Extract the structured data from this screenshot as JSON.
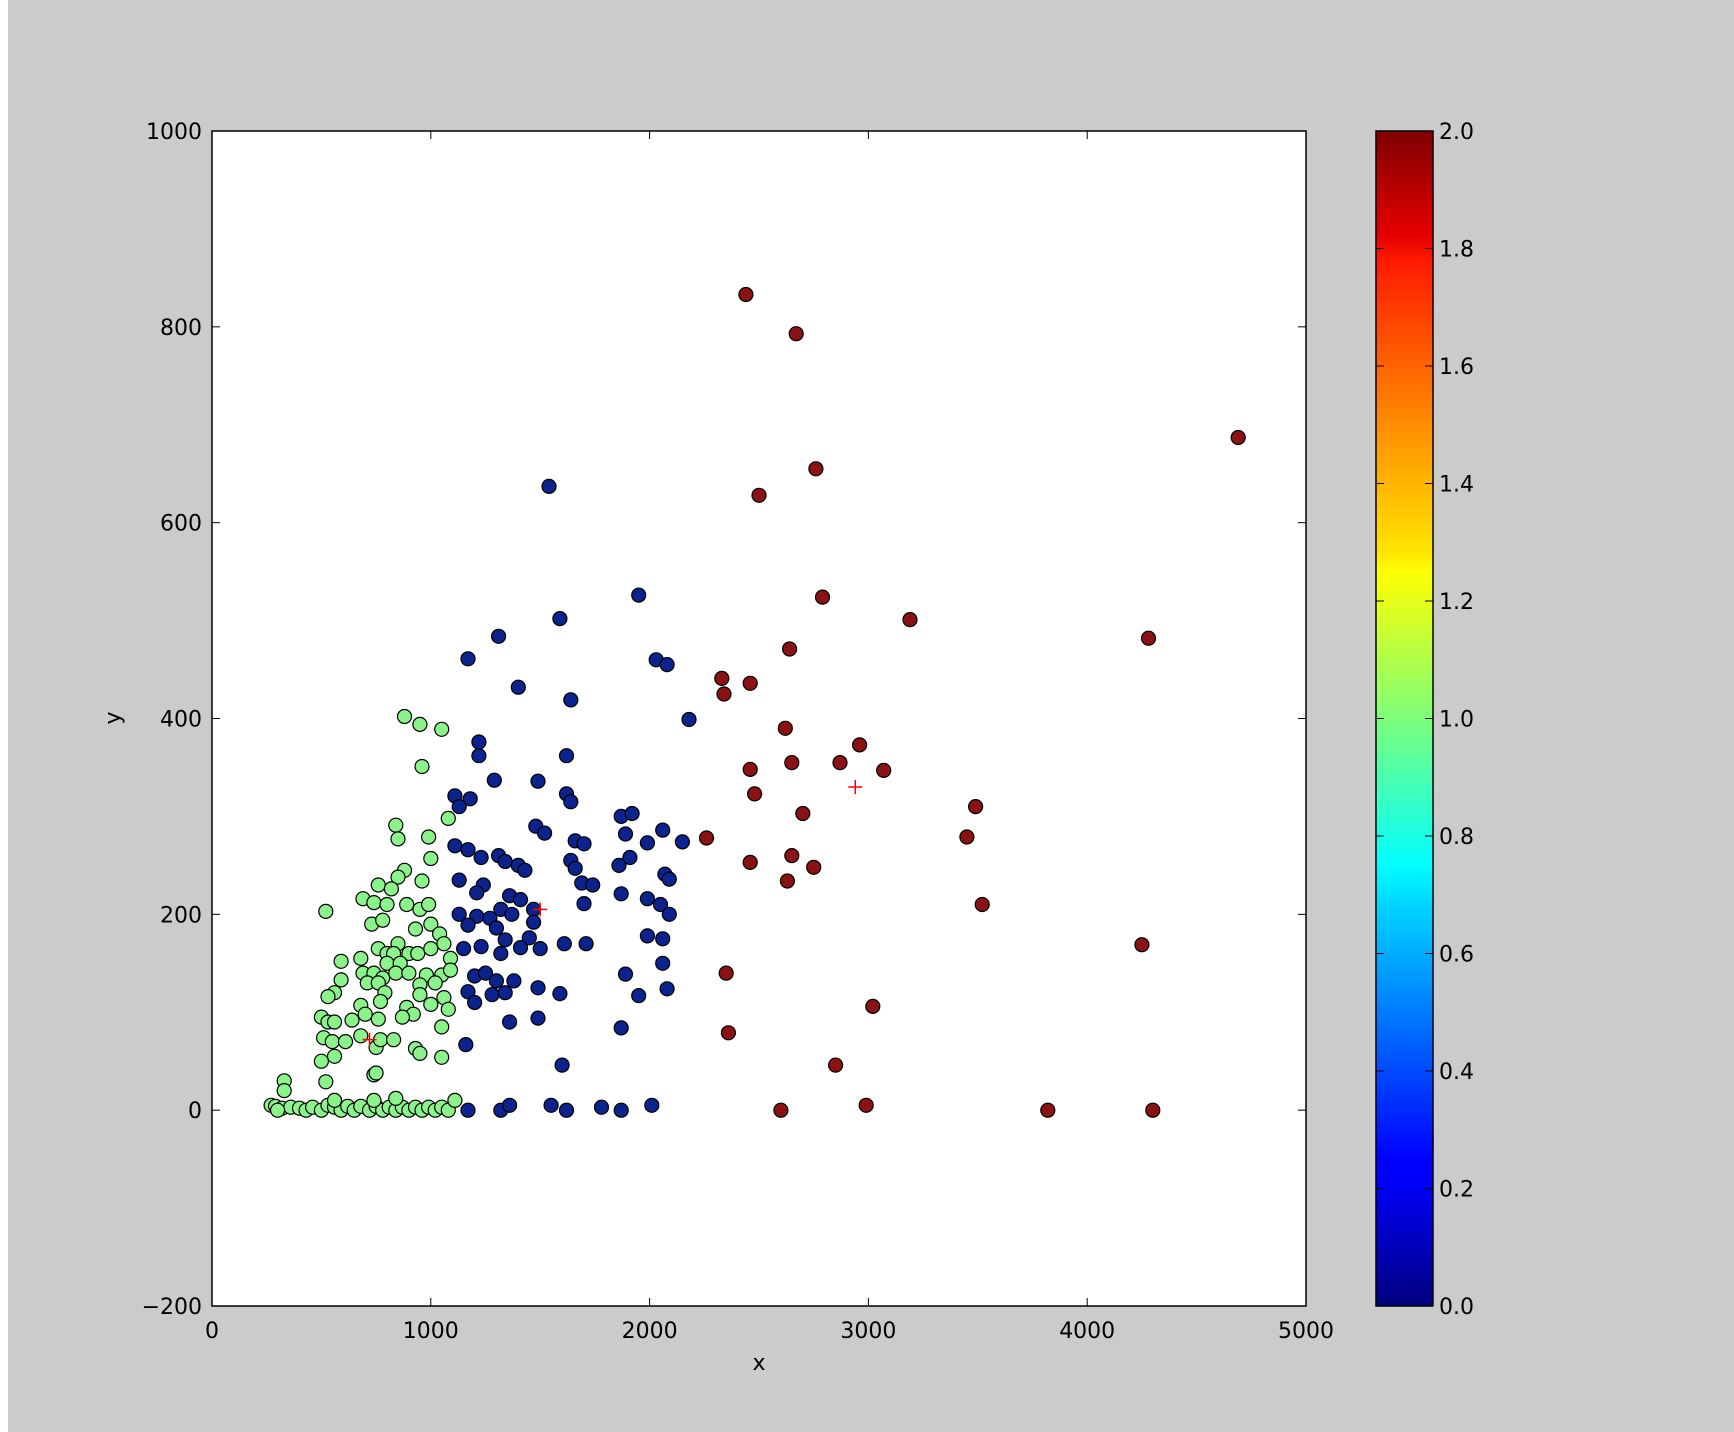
{
  "chart_data": {
    "type": "scatter",
    "title": "",
    "xlabel": "x",
    "ylabel": "y",
    "xlim": [
      0,
      5000
    ],
    "ylim": [
      -200,
      1000
    ],
    "xticks": [
      "0",
      "1000",
      "2000",
      "3000",
      "4000",
      "5000"
    ],
    "yticks": [
      "−200",
      "0",
      "200",
      "400",
      "600",
      "800",
      "1000"
    ],
    "grid": false,
    "colorbar": {
      "colormap": "jet",
      "range": [
        0.0,
        2.0
      ],
      "ticks": [
        "0.0",
        "0.2",
        "0.4",
        "0.6",
        "0.8",
        "1.0",
        "1.2",
        "1.4",
        "1.6",
        "1.8",
        "2.0"
      ]
    },
    "cluster_colors": {
      "0": "#0c228c",
      "1": "#8af48a",
      "2": "#8a1212"
    },
    "centroid_color": "#ff0000",
    "series": [
      {
        "cluster": 2,
        "points": [
          [
            2440,
            833
          ],
          [
            2670,
            793
          ],
          [
            4690,
            687
          ],
          [
            2760,
            655
          ],
          [
            2500,
            628
          ],
          [
            2790,
            524
          ],
          [
            3190,
            501
          ],
          [
            4280,
            482
          ],
          [
            2640,
            471
          ],
          [
            2330,
            441
          ],
          [
            2460,
            436
          ],
          [
            2340,
            425
          ],
          [
            2620,
            390
          ],
          [
            2960,
            373
          ],
          [
            2460,
            348
          ],
          [
            2650,
            355
          ],
          [
            2870,
            355
          ],
          [
            3070,
            347
          ],
          [
            2480,
            323
          ],
          [
            3490,
            310
          ],
          [
            2700,
            303
          ],
          [
            2260,
            278
          ],
          [
            3450,
            279
          ],
          [
            2650,
            260
          ],
          [
            2460,
            253
          ],
          [
            2750,
            248
          ],
          [
            2630,
            234
          ],
          [
            3520,
            210
          ],
          [
            4250,
            169
          ],
          [
            2350,
            140
          ],
          [
            3020,
            106
          ],
          [
            2360,
            79
          ],
          [
            2850,
            46
          ],
          [
            2990,
            5
          ],
          [
            3820,
            0
          ],
          [
            2600,
            0
          ],
          [
            4300,
            0
          ]
        ]
      },
      {
        "cluster": 0,
        "points": [
          [
            1540,
            637
          ],
          [
            1950,
            526
          ],
          [
            1590,
            502
          ],
          [
            1310,
            484
          ],
          [
            1170,
            461
          ],
          [
            2030,
            460
          ],
          [
            2080,
            455
          ],
          [
            1400,
            432
          ],
          [
            1640,
            419
          ],
          [
            2180,
            399
          ],
          [
            1220,
            376
          ],
          [
            1220,
            362
          ],
          [
            1620,
            362
          ],
          [
            1290,
            337
          ],
          [
            1490,
            336
          ],
          [
            1110,
            321
          ],
          [
            1180,
            318
          ],
          [
            1620,
            323
          ],
          [
            1640,
            315
          ],
          [
            1130,
            310
          ],
          [
            1870,
            300
          ],
          [
            1920,
            303
          ],
          [
            1480,
            290
          ],
          [
            1520,
            283
          ],
          [
            1890,
            282
          ],
          [
            2060,
            286
          ],
          [
            1990,
            273
          ],
          [
            2150,
            274
          ],
          [
            1110,
            270
          ],
          [
            1170,
            266
          ],
          [
            1660,
            275
          ],
          [
            1700,
            272
          ],
          [
            1230,
            258
          ],
          [
            1310,
            260
          ],
          [
            1340,
            254
          ],
          [
            1400,
            250
          ],
          [
            1430,
            245
          ],
          [
            1640,
            255
          ],
          [
            1660,
            247
          ],
          [
            1860,
            250
          ],
          [
            1910,
            258
          ],
          [
            2070,
            241
          ],
          [
            2090,
            236
          ],
          [
            1130,
            235
          ],
          [
            1240,
            230
          ],
          [
            1210,
            222
          ],
          [
            1360,
            219
          ],
          [
            1410,
            215
          ],
          [
            1690,
            232
          ],
          [
            1740,
            230
          ],
          [
            1990,
            216
          ],
          [
            2050,
            210
          ],
          [
            1130,
            200
          ],
          [
            1210,
            198
          ],
          [
            1270,
            196
          ],
          [
            1320,
            205
          ],
          [
            1370,
            200
          ],
          [
            1470,
            205
          ],
          [
            1700,
            211
          ],
          [
            1870,
            221
          ],
          [
            2090,
            200
          ],
          [
            1170,
            189
          ],
          [
            1300,
            186
          ],
          [
            1340,
            174
          ],
          [
            1450,
            176
          ],
          [
            1470,
            192
          ],
          [
            1610,
            170
          ],
          [
            1710,
            170
          ],
          [
            1990,
            178
          ],
          [
            2060,
            175
          ],
          [
            1150,
            165
          ],
          [
            1230,
            167
          ],
          [
            1320,
            160
          ],
          [
            1410,
            166
          ],
          [
            1500,
            165
          ],
          [
            2060,
            150
          ],
          [
            1200,
            137
          ],
          [
            1250,
            140
          ],
          [
            1300,
            132
          ],
          [
            1380,
            132
          ],
          [
            1170,
            121
          ],
          [
            1280,
            118
          ],
          [
            1490,
            125
          ],
          [
            1590,
            119
          ],
          [
            1890,
            139
          ],
          [
            1950,
            117
          ],
          [
            2080,
            124
          ],
          [
            1200,
            110
          ],
          [
            1340,
            120
          ],
          [
            1360,
            90
          ],
          [
            1490,
            94
          ],
          [
            1870,
            84
          ],
          [
            1160,
            67
          ],
          [
            1600,
            46
          ],
          [
            1550,
            5
          ],
          [
            1620,
            0
          ],
          [
            1780,
            3
          ],
          [
            1870,
            0
          ],
          [
            2010,
            5
          ],
          [
            1320,
            0
          ],
          [
            1360,
            5
          ],
          [
            1170,
            0
          ]
        ]
      },
      {
        "cluster": 1,
        "points": [
          [
            880,
            402
          ],
          [
            950,
            394
          ],
          [
            1050,
            389
          ],
          [
            960,
            351
          ],
          [
            1080,
            298
          ],
          [
            840,
            291
          ],
          [
            850,
            277
          ],
          [
            990,
            279
          ],
          [
            1000,
            257
          ],
          [
            880,
            245
          ],
          [
            850,
            238
          ],
          [
            960,
            234
          ],
          [
            760,
            230
          ],
          [
            690,
            216
          ],
          [
            740,
            212
          ],
          [
            820,
            226
          ],
          [
            800,
            210
          ],
          [
            890,
            210
          ],
          [
            950,
            205
          ],
          [
            520,
            203
          ],
          [
            990,
            210
          ],
          [
            730,
            190
          ],
          [
            780,
            194
          ],
          [
            1000,
            190
          ],
          [
            930,
            185
          ],
          [
            1040,
            180
          ],
          [
            850,
            170
          ],
          [
            1060,
            170
          ],
          [
            760,
            165
          ],
          [
            800,
            160
          ],
          [
            830,
            160
          ],
          [
            900,
            160
          ],
          [
            940,
            160
          ],
          [
            1000,
            165
          ],
          [
            590,
            152
          ],
          [
            680,
            155
          ],
          [
            800,
            150
          ],
          [
            860,
            150
          ],
          [
            1090,
            155
          ],
          [
            690,
            140
          ],
          [
            740,
            140
          ],
          [
            780,
            135
          ],
          [
            840,
            140
          ],
          [
            900,
            140
          ],
          [
            980,
            138
          ],
          [
            1050,
            138
          ],
          [
            1090,
            143
          ],
          [
            590,
            133
          ],
          [
            710,
            130
          ],
          [
            760,
            130
          ],
          [
            950,
            128
          ],
          [
            1020,
            130
          ],
          [
            560,
            120
          ],
          [
            790,
            120
          ],
          [
            950,
            118
          ],
          [
            1060,
            115
          ],
          [
            530,
            116
          ],
          [
            680,
            107
          ],
          [
            770,
            111
          ],
          [
            890,
            105
          ],
          [
            920,
            98
          ],
          [
            1000,
            108
          ],
          [
            1080,
            103
          ],
          [
            500,
            95
          ],
          [
            530,
            90
          ],
          [
            560,
            90
          ],
          [
            640,
            92
          ],
          [
            700,
            98
          ],
          [
            760,
            93
          ],
          [
            870,
            95
          ],
          [
            1050,
            85
          ],
          [
            510,
            74
          ],
          [
            550,
            70
          ],
          [
            610,
            70
          ],
          [
            680,
            76
          ],
          [
            750,
            64
          ],
          [
            770,
            72
          ],
          [
            830,
            72
          ],
          [
            930,
            63
          ],
          [
            950,
            58
          ],
          [
            1050,
            54
          ],
          [
            500,
            50
          ],
          [
            560,
            55
          ],
          [
            740,
            36
          ],
          [
            750,
            38
          ],
          [
            520,
            29
          ],
          [
            330,
            30
          ],
          [
            330,
            20
          ],
          [
            270,
            5
          ],
          [
            290,
            4
          ],
          [
            320,
            2
          ],
          [
            360,
            3
          ],
          [
            400,
            2
          ],
          [
            430,
            0
          ],
          [
            460,
            3
          ],
          [
            500,
            0
          ],
          [
            530,
            5
          ],
          [
            560,
            3
          ],
          [
            590,
            0
          ],
          [
            620,
            4
          ],
          [
            650,
            0
          ],
          [
            680,
            4
          ],
          [
            720,
            0
          ],
          [
            750,
            4
          ],
          [
            780,
            0
          ],
          [
            810,
            3
          ],
          [
            840,
            0
          ],
          [
            870,
            3
          ],
          [
            900,
            0
          ],
          [
            930,
            3
          ],
          [
            960,
            0
          ],
          [
            990,
            3
          ],
          [
            1020,
            0
          ],
          [
            1050,
            3
          ],
          [
            1080,
            0
          ],
          [
            1110,
            10
          ],
          [
            300,
            0
          ],
          [
            560,
            10
          ],
          [
            740,
            10
          ],
          [
            840,
            12
          ]
        ]
      }
    ],
    "centroids": [
      [
        720,
        72
      ],
      [
        1500,
        205
      ],
      [
        2940,
        330
      ]
    ]
  }
}
